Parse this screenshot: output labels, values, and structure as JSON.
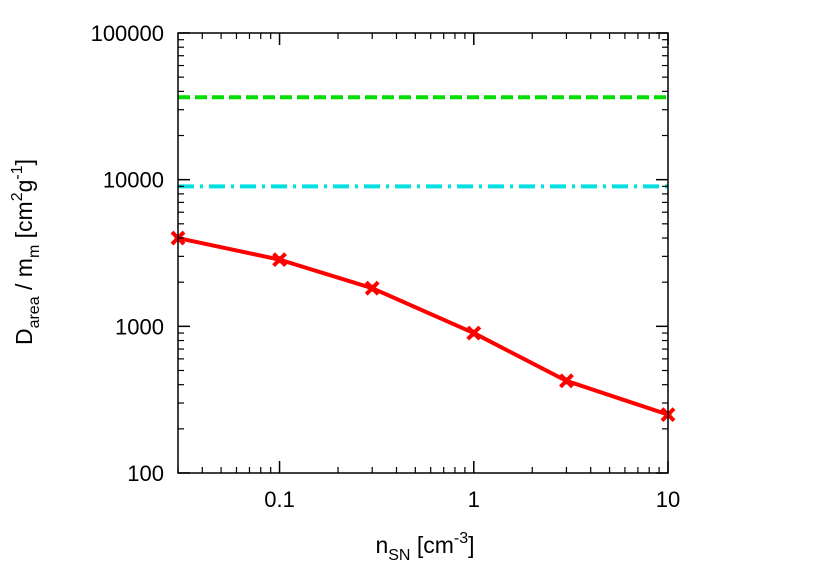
{
  "chart_data": {
    "type": "line",
    "title": "",
    "xscale": "log",
    "yscale": "log",
    "xlim": [
      0.03,
      10
    ],
    "ylim": [
      100,
      100000
    ],
    "grid": false,
    "legend": "none",
    "xlabel": {
      "main": "n",
      "sub": "SN",
      "rest": " [cm",
      "sup": "-3",
      "end": "]"
    },
    "ylabel": {
      "main": "D",
      "sub": "area",
      "mid": " / m",
      "sub2": "m",
      "rest": " [cm",
      "sup1": "2",
      "rest2": "g",
      "sup2": "-1",
      "end": "]"
    },
    "xticks": [
      {
        "value": 0.1,
        "label": "0.1"
      },
      {
        "value": 1,
        "label": "1"
      },
      {
        "value": 10,
        "label": "10"
      }
    ],
    "yticks": [
      {
        "value": 100,
        "label": "100"
      },
      {
        "value": 1000,
        "label": "1000"
      },
      {
        "value": 10000,
        "label": "10000"
      },
      {
        "value": 100000,
        "label": "100000"
      }
    ],
    "series": [
      {
        "style": "solid-markers",
        "color": "#ff0000",
        "x": [
          0.03,
          0.1,
          0.3,
          1,
          3,
          10
        ],
        "y": [
          4000,
          2850,
          1820,
          900,
          425,
          250
        ]
      },
      {
        "style": "dashed",
        "color": "#00dd00",
        "x": [
          0.03,
          10
        ],
        "y": [
          36500,
          36500
        ]
      },
      {
        "style": "dash-dot",
        "color": "#00e0e0",
        "x": [
          0.03,
          10
        ],
        "y": [
          9000,
          9000
        ]
      }
    ]
  }
}
